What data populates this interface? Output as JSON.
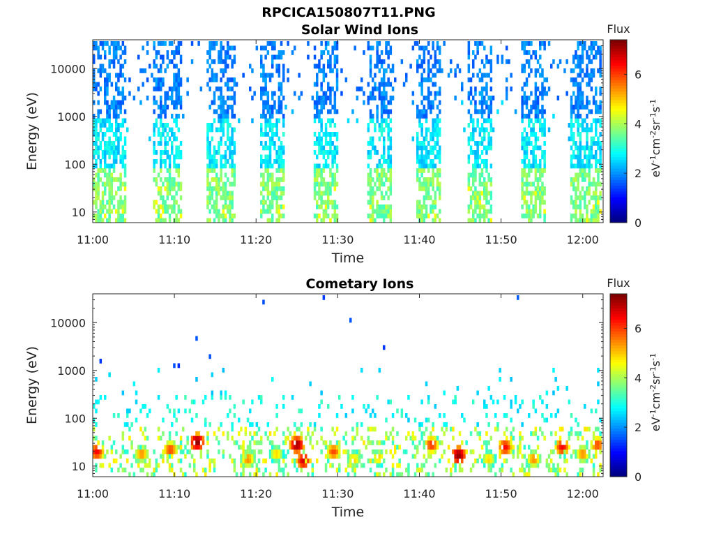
{
  "title": "RPCICA150807T11.PNG",
  "colorbar": {
    "label": "Flux",
    "unit_parts": [
      "eV",
      "-1",
      "cm",
      "-2",
      "sr",
      "-1",
      "s",
      "-1"
    ],
    "ticks": [
      0,
      2,
      4,
      6
    ],
    "range": [
      0,
      7.4
    ],
    "colormap": "jet"
  },
  "chart_data": [
    {
      "type": "heatmap",
      "title": "Solar Wind Ions",
      "xlabel": "Time",
      "ylabel": "Energy (eV)",
      "x_ticks": [
        "11:00",
        "11:10",
        "11:20",
        "11:30",
        "11:40",
        "11:50",
        "12:00"
      ],
      "x_range_minutes": [
        0,
        62.5
      ],
      "y_ticks": [
        10,
        100,
        1000,
        10000
      ],
      "y_range": [
        6,
        40000
      ],
      "y_scale": "log",
      "z_label": "Flux",
      "z_range": [
        0,
        7.4
      ],
      "sweep_bursts_minutes": [
        {
          "start": 0.0,
          "end": 4.2
        },
        {
          "start": 7.5,
          "end": 10.8
        },
        {
          "start": 14.0,
          "end": 17.5
        },
        {
          "start": 20.5,
          "end": 23.5
        },
        {
          "start": 27.0,
          "end": 30.0
        },
        {
          "start": 33.5,
          "end": 36.5
        },
        {
          "start": 39.5,
          "end": 42.5
        },
        {
          "start": 46.0,
          "end": 49.0
        },
        {
          "start": 52.5,
          "end": 55.5
        },
        {
          "start": 58.5,
          "end": 62.2
        }
      ],
      "description_values": {
        "high_energy_flux_approx": 1.5,
        "low_energy_flux_approx": 3.2,
        "low_energy_peak_flux": 4.6
      }
    },
    {
      "type": "heatmap",
      "title": "Cometary Ions",
      "xlabel": "Time",
      "ylabel": "Energy (eV)",
      "x_ticks": [
        "11:00",
        "11:10",
        "11:20",
        "11:30",
        "11:40",
        "11:50",
        "12:00"
      ],
      "x_range_minutes": [
        0,
        62.5
      ],
      "y_ticks": [
        10,
        100,
        1000,
        10000
      ],
      "y_range": [
        6,
        40000
      ],
      "y_scale": "log",
      "z_label": "Flux",
      "z_range": [
        0,
        7.4
      ],
      "hotspots": [
        {
          "t": 0.5,
          "e": 20,
          "flux": 6.5
        },
        {
          "t": 6.0,
          "e": 18,
          "flux": 5.5
        },
        {
          "t": 9.5,
          "e": 22,
          "flux": 6.0
        },
        {
          "t": 12.8,
          "e": 32,
          "flux": 7.3
        },
        {
          "t": 19.0,
          "e": 14,
          "flux": 5.5
        },
        {
          "t": 22.5,
          "e": 18,
          "flux": 5.0
        },
        {
          "t": 25.0,
          "e": 28,
          "flux": 7.2
        },
        {
          "t": 25.8,
          "e": 13,
          "flux": 6.8
        },
        {
          "t": 29.5,
          "e": 20,
          "flux": 6.0
        },
        {
          "t": 32.0,
          "e": 14,
          "flux": 5.0
        },
        {
          "t": 35.0,
          "e": 15,
          "flux": 5.0
        },
        {
          "t": 41.5,
          "e": 28,
          "flux": 6.2
        },
        {
          "t": 44.8,
          "e": 17,
          "flux": 7.3
        },
        {
          "t": 48.5,
          "e": 14,
          "flux": 5.0
        },
        {
          "t": 50.5,
          "e": 25,
          "flux": 6.5
        },
        {
          "t": 54.0,
          "e": 14,
          "flux": 5.5
        },
        {
          "t": 57.5,
          "e": 25,
          "flux": 6.5
        },
        {
          "t": 60.0,
          "e": 18,
          "flux": 5.5
        },
        {
          "t": 61.8,
          "e": 28,
          "flux": 6.0
        }
      ]
    }
  ]
}
